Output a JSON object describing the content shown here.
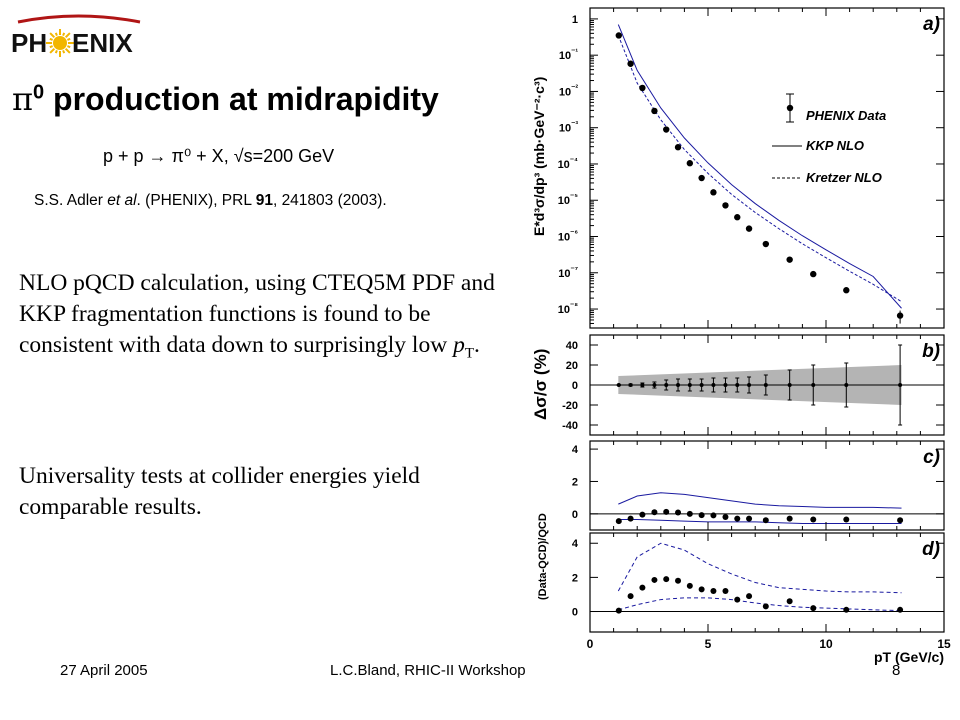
{
  "logo": {
    "text_left": "PH",
    "text_right": "ENIX"
  },
  "title": {
    "symbol": "π",
    "superscript": "0",
    "text": " production at midrapidity"
  },
  "reaction": "p + p → π⁰ + X, √s=200 GeV",
  "citation": {
    "authors": "S.S. Adler ",
    "etal": "et al",
    "collab": ". (PHENIX), PRL ",
    "volume": "91",
    "rest": ", 241803 (2003)."
  },
  "paragraph1": {
    "text": "NLO pQCD calculation, using CTEQ5M PDF and KKP fragmentation functions is found to be consistent with data down to surprisingly low ",
    "var": "p",
    "sub": "T",
    "end": "."
  },
  "paragraph2": "Universality tests at collider energies yield comparable results.",
  "footer": {
    "date": "27 April 2005",
    "center": "L.C.Bland, RHIC-II Workshop",
    "page": "8"
  },
  "colors": {
    "theory_line": "#1a1aa0",
    "band": "#b4b4b4",
    "logo_sun": "#f2b600"
  },
  "chart_data": [
    {
      "type": "scatter",
      "panel_label": "a)",
      "ylabel": "E*d³σ/dp³ (mb·GeV⁻²·c³)",
      "y_scale": "log",
      "ylim": [
        3e-09,
        2
      ],
      "xlim": [
        0,
        15
      ],
      "ytick_labels": [
        "1",
        "10⁻¹",
        "10⁻²",
        "10⁻³",
        "10⁻⁴",
        "10⁻⁵",
        "10⁻⁶",
        "10⁻⁷",
        "10⁻⁸"
      ],
      "legend": [
        "PHENIX Data",
        "KKP NLO",
        "Kretzer NLO"
      ],
      "legend_position": "top-right",
      "series": [
        {
          "name": "PHENIX Data",
          "x": [
            1.22,
            1.72,
            2.22,
            2.73,
            3.23,
            3.73,
            4.23,
            4.73,
            5.23,
            5.74,
            6.24,
            6.74,
            7.45,
            8.46,
            9.46,
            10.86,
            13.14
          ],
          "y": [
            0.35,
            0.058,
            0.0125,
            0.0029,
            0.00089,
            0.00029,
            0.000105,
            4.1e-05,
            1.65e-05,
            7.2e-06,
            3.4e-06,
            1.65e-06,
            6.2e-07,
            2.3e-07,
            9.2e-08,
            3.3e-08,
            6.6e-09
          ]
        },
        {
          "name": "KKP NLO",
          "x": [
            1.2,
            2,
            3,
            4,
            5,
            6,
            7,
            8,
            9,
            10,
            11,
            12,
            13.2
          ],
          "y": [
            0.7,
            0.038,
            0.0035,
            0.00052,
            0.000107,
            2.7e-05,
            8.1e-06,
            2.8e-06,
            1.05e-06,
            4.3e-07,
            1.8e-07,
            7.9e-08,
            1.05e-08
          ]
        },
        {
          "name": "Kretzer NLO",
          "x": [
            1.2,
            2,
            3,
            4,
            5,
            6,
            7,
            8,
            9,
            10,
            11,
            12,
            13.2
          ],
          "y": [
            0.35,
            0.017,
            0.00165,
            0.00025,
            5.5e-05,
            1.45e-05,
            4.6e-06,
            1.65e-06,
            6.3e-07,
            2.6e-07,
            1.1e-07,
            4.8e-08,
            1.6e-08
          ]
        }
      ]
    },
    {
      "type": "scatter",
      "panel_label": "b)",
      "ylabel": "Δσ/σ (%)",
      "ylim": [
        -50,
        50
      ],
      "yticks": [
        40,
        20,
        0,
        -20,
        -40
      ],
      "xlim": [
        0,
        15
      ],
      "x": [
        1.22,
        1.72,
        2.22,
        2.73,
        3.23,
        3.73,
        4.23,
        4.73,
        5.23,
        5.74,
        6.24,
        6.74,
        7.45,
        8.46,
        9.46,
        10.86,
        13.14
      ],
      "y": [
        0,
        0,
        0,
        0,
        0,
        0,
        0,
        0,
        0,
        0,
        0,
        0,
        0,
        0,
        0,
        0,
        0
      ],
      "stat_err": [
        0.5,
        1,
        2,
        3,
        5,
        6,
        6,
        6,
        7,
        7,
        7,
        8,
        10,
        15,
        20,
        22,
        40
      ],
      "band": {
        "x": [
          1.2,
          13.2
        ],
        "upper": [
          9,
          20
        ],
        "lower": [
          -9,
          -20
        ]
      }
    },
    {
      "type": "scatter",
      "panel_label": "c)",
      "ylabel": "(Data-QCD)/QCD",
      "ylim": [
        -1,
        4.5
      ],
      "yticks": [
        4,
        2,
        0
      ],
      "xlim": [
        0,
        15
      ],
      "x": [
        1.22,
        1.72,
        2.22,
        2.73,
        3.23,
        3.73,
        4.23,
        4.73,
        5.23,
        5.74,
        6.24,
        6.74,
        7.45,
        8.46,
        9.46,
        10.86,
        13.14
      ],
      "y": [
        -0.45,
        -0.3,
        -0.05,
        0.1,
        0.12,
        0.08,
        0.0,
        -0.08,
        -0.1,
        -0.2,
        -0.3,
        -0.3,
        -0.4,
        -0.3,
        -0.35,
        -0.35,
        -0.4
      ],
      "band": {
        "x": [
          1.2,
          2,
          3,
          4,
          5,
          6,
          7,
          8,
          9,
          10,
          11,
          12,
          13.2
        ],
        "upper": [
          0.6,
          1.1,
          1.3,
          1.2,
          1.0,
          0.8,
          0.6,
          0.5,
          0.45,
          0.4,
          0.4,
          0.4,
          0.35
        ],
        "lower": [
          -0.35,
          -0.35,
          -0.4,
          -0.45,
          -0.5,
          -0.5,
          -0.5,
          -0.55,
          -0.6,
          -0.6,
          -0.6,
          -0.6,
          -0.6
        ]
      }
    },
    {
      "type": "scatter",
      "panel_label": "d)",
      "ylabel": "(Data-QCD)/QCD",
      "ylim": [
        -1.2,
        4.6
      ],
      "yticks": [
        4,
        2,
        0
      ],
      "xlim": [
        0,
        15
      ],
      "xticks": [
        0,
        5,
        10,
        15
      ],
      "xlabel": "pT (GeV/c)",
      "x": [
        1.22,
        1.72,
        2.22,
        2.73,
        3.23,
        3.73,
        4.23,
        4.73,
        5.23,
        5.74,
        6.24,
        6.74,
        7.45,
        8.46,
        9.46,
        10.86,
        13.14
      ],
      "y": [
        0.05,
        0.9,
        1.4,
        1.85,
        1.9,
        1.8,
        1.5,
        1.3,
        1.2,
        1.2,
        0.7,
        0.9,
        0.3,
        0.6,
        0.2,
        0.1,
        0.1
      ],
      "band": {
        "x": [
          1.2,
          2,
          3,
          4,
          5,
          6,
          7,
          8,
          9,
          10,
          11,
          12,
          13.2
        ],
        "upper": [
          1.2,
          3.2,
          4.0,
          3.6,
          2.8,
          2.2,
          1.7,
          1.4,
          1.3,
          1.2,
          1.15,
          1.15,
          1.1
        ],
        "lower": [
          0.1,
          0.4,
          0.7,
          0.8,
          0.8,
          0.7,
          0.5,
          0.35,
          0.25,
          0.2,
          0.15,
          0.1,
          0.05
        ]
      }
    }
  ]
}
